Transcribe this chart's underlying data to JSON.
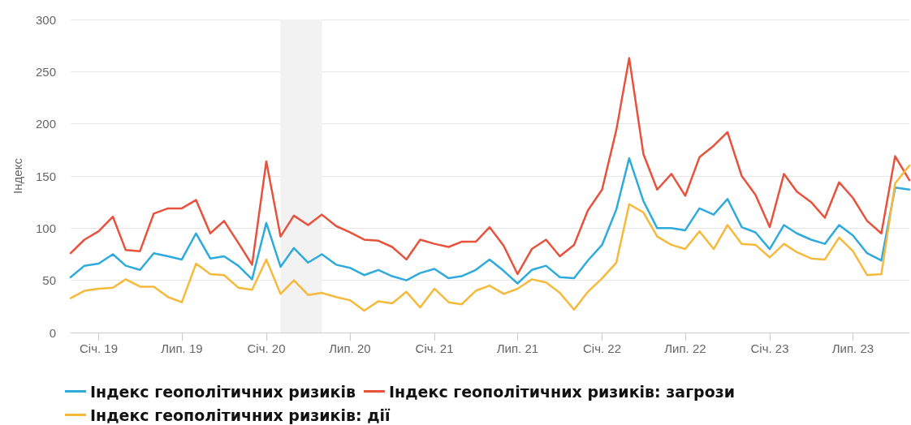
{
  "chart_data": {
    "type": "line",
    "ylabel": "Індекс",
    "x": [
      "2018-11",
      "2018-12",
      "2019-01",
      "2019-02",
      "2019-03",
      "2019-04",
      "2019-05",
      "2019-06",
      "2019-07",
      "2019-08",
      "2019-09",
      "2019-10",
      "2019-11",
      "2019-12",
      "2020-01",
      "2020-02",
      "2020-03",
      "2020-04",
      "2020-05",
      "2020-06",
      "2020-07",
      "2020-08",
      "2020-09",
      "2020-10",
      "2020-11",
      "2020-12",
      "2021-01",
      "2021-02",
      "2021-03",
      "2021-04",
      "2021-05",
      "2021-06",
      "2021-07",
      "2021-08",
      "2021-09",
      "2021-10",
      "2021-11",
      "2021-12",
      "2022-01",
      "2022-02",
      "2022-03",
      "2022-04",
      "2022-05",
      "2022-06",
      "2022-07",
      "2022-08",
      "2022-09",
      "2022-10",
      "2022-11",
      "2022-12",
      "2023-01",
      "2023-02",
      "2023-03",
      "2023-04",
      "2023-05",
      "2023-06",
      "2023-07",
      "2023-08",
      "2023-09",
      "2023-10",
      "2023-11"
    ],
    "series": [
      {
        "name": "Індекс геополітичних ризиків",
        "color": "#2eaadc",
        "values": [
          53,
          64,
          66,
          75,
          64,
          60,
          76,
          73,
          70,
          95,
          71,
          73,
          64,
          51,
          105,
          63,
          81,
          67,
          75,
          65,
          62,
          55,
          60,
          54,
          50,
          57,
          61,
          52,
          54,
          60,
          70,
          59,
          47,
          60,
          64,
          53,
          52,
          69,
          84,
          118,
          167,
          126,
          100,
          100,
          98,
          119,
          113,
          128,
          101,
          96,
          80,
          103,
          95,
          89,
          85,
          103,
          93,
          76,
          69,
          139,
          137
        ]
      },
      {
        "name": "Індекс геополітичних ризиків: загрози",
        "color": "#e8523c",
        "values": [
          76,
          89,
          97,
          111,
          79,
          78,
          114,
          119,
          119,
          127,
          95,
          107,
          86,
          65,
          164,
          92,
          112,
          103,
          113,
          102,
          96,
          89,
          88,
          82,
          70,
          89,
          85,
          82,
          87,
          87,
          101,
          83,
          56,
          80,
          89,
          73,
          84,
          117,
          137,
          194,
          263,
          171,
          137,
          152,
          131,
          168,
          179,
          192,
          150,
          132,
          101,
          152,
          135,
          125,
          110,
          144,
          129,
          107,
          95,
          169,
          146
        ]
      },
      {
        "name": "Індекс геополітичних ризиків: дії",
        "color": "#f6b93b",
        "values": [
          33,
          40,
          42,
          43,
          51,
          44,
          44,
          34,
          29,
          66,
          56,
          55,
          43,
          41,
          70,
          37,
          50,
          36,
          38,
          34,
          31,
          21,
          30,
          28,
          39,
          24,
          42,
          29,
          27,
          40,
          45,
          37,
          42,
          51,
          48,
          38,
          22,
          39,
          52,
          67,
          123,
          115,
          92,
          84,
          80,
          97,
          80,
          103,
          85,
          84,
          72,
          85,
          77,
          71,
          70,
          91,
          78,
          55,
          56,
          143,
          160
        ]
      }
    ],
    "xlim": [
      "2018-11",
      "2023-11"
    ],
    "xticks": [
      {
        "value": "2019-01",
        "label": "Січ. 19"
      },
      {
        "value": "2019-07",
        "label": "Лип. 19"
      },
      {
        "value": "2020-01",
        "label": "Січ. 20"
      },
      {
        "value": "2020-07",
        "label": "Лип. 20"
      },
      {
        "value": "2021-01",
        "label": "Січ. 21"
      },
      {
        "value": "2021-07",
        "label": "Лип. 21"
      },
      {
        "value": "2022-01",
        "label": "Січ. 22"
      },
      {
        "value": "2022-07",
        "label": "Лип. 22"
      },
      {
        "value": "2023-01",
        "label": "Січ. 23"
      },
      {
        "value": "2023-07",
        "label": "Лип. 23"
      }
    ],
    "ylim": [
      0,
      300
    ],
    "yticks": [
      0,
      50,
      100,
      150,
      200,
      250,
      300
    ],
    "bands": [
      {
        "axis": "x",
        "from": "2020-02",
        "to": "2020-05",
        "color": "#f2f2f2"
      }
    ],
    "grid": "y",
    "legend": "bottom",
    "marker": "none",
    "line_style": "solid"
  }
}
